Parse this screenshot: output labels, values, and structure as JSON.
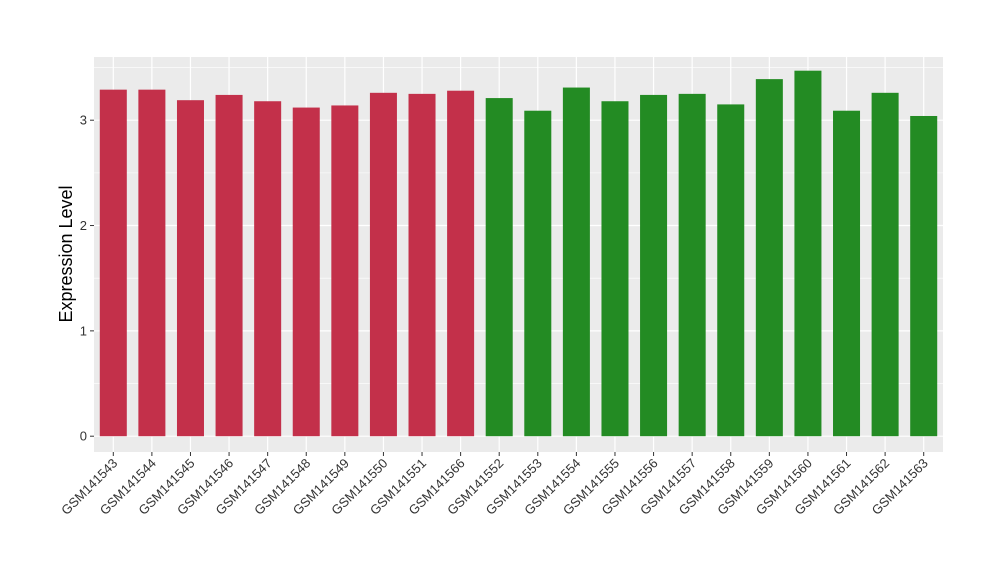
{
  "chart_data": {
    "type": "bar",
    "ylabel": "Expression Level",
    "xlabel": "",
    "ylim": [
      -0.15,
      3.6
    ],
    "yticks": [
      0,
      1,
      2,
      3
    ],
    "grid": true,
    "colors": {
      "group1": "#C3304A",
      "group2": "#238B23",
      "panel": "#EBEBEB",
      "grid": "#FFFFFF"
    },
    "categories": [
      "GSM141543",
      "GSM141544",
      "GSM141545",
      "GSM141546",
      "GSM141547",
      "GSM141548",
      "GSM141549",
      "GSM141550",
      "GSM141551",
      "GSM141566",
      "GSM141552",
      "GSM141553",
      "GSM141554",
      "GSM141555",
      "GSM141556",
      "GSM141557",
      "GSM141558",
      "GSM141559",
      "GSM141560",
      "GSM141561",
      "GSM141562",
      "GSM141563"
    ],
    "values": [
      3.29,
      3.29,
      3.19,
      3.24,
      3.18,
      3.12,
      3.14,
      3.26,
      3.25,
      3.28,
      3.21,
      3.09,
      3.31,
      3.18,
      3.24,
      3.25,
      3.15,
      3.39,
      3.47,
      3.09,
      3.26,
      3.04
    ],
    "groups": [
      "group1",
      "group1",
      "group1",
      "group1",
      "group1",
      "group1",
      "group1",
      "group1",
      "group1",
      "group1",
      "group2",
      "group2",
      "group2",
      "group2",
      "group2",
      "group2",
      "group2",
      "group2",
      "group2",
      "group2",
      "group2",
      "group2"
    ]
  }
}
